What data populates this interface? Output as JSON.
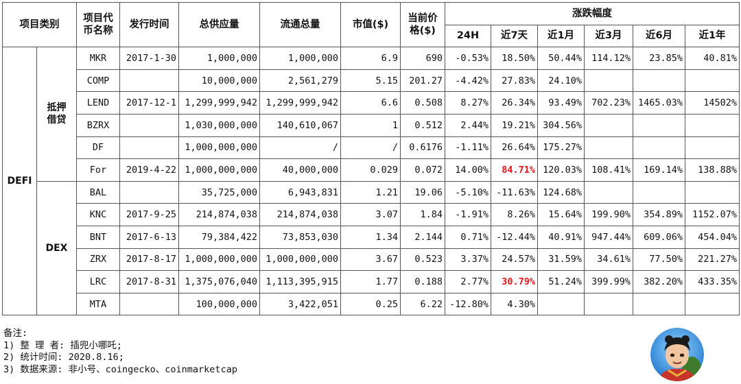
{
  "headers": {
    "category": "项目类别",
    "token_line1": "项目代",
    "token_line2": "币名称",
    "issue_date": "发行时间",
    "total_supply": "总供应量",
    "circulating": "流通总量",
    "market_cap_line1": "市值($)",
    "price_line1": "当前价",
    "price_line2": "格($)",
    "change": "涨跌幅度",
    "periods": [
      "24H",
      "近7天",
      "近1月",
      "近3月",
      "近6月",
      "近1年"
    ]
  },
  "categories": {
    "main": "DEFI",
    "sub_lending_line1": "抵押",
    "sub_lending_line2": "借贷",
    "sub_dex": "DEX"
  },
  "rows": [
    {
      "symbol": "MKR",
      "date": "2017-1-30",
      "supply": "1,000,000",
      "circ": "1,000,000",
      "mcap": "6.9",
      "price": "690",
      "c24h": "-0.53%",
      "c7d": "18.50%",
      "c1m": "50.44%",
      "c3m": "114.12%",
      "c6m": "23.85%",
      "c1y": "40.81%"
    },
    {
      "symbol": "COMP",
      "date": "",
      "supply": "10,000,000",
      "circ": "2,561,279",
      "mcap": "5.15",
      "price": "201.27",
      "c24h": "-4.42%",
      "c7d": "27.83%",
      "c1m": "24.10%",
      "c3m": "",
      "c6m": "",
      "c1y": ""
    },
    {
      "symbol": "LEND",
      "date": "2017-12-1",
      "supply": "1,299,999,942",
      "circ": "1,299,999,942",
      "mcap": "6.6",
      "price": "0.508",
      "c24h": "8.27%",
      "c7d": "26.34%",
      "c1m": "93.49%",
      "c3m": "702.23%",
      "c6m": "1465.03%",
      "c1y": "14502%"
    },
    {
      "symbol": "BZRX",
      "date": "",
      "supply": "1,030,000,000",
      "circ": "140,610,067",
      "mcap": "1",
      "price": "0.512",
      "c24h": "2.44%",
      "c7d": "19.21%",
      "c1m": "304.56%",
      "c3m": "",
      "c6m": "",
      "c1y": ""
    },
    {
      "symbol": "DF",
      "date": "",
      "supply": "1,000,000,000",
      "circ": "/",
      "mcap": "/",
      "price": "0.6176",
      "c24h": "-1.11%",
      "c7d": "26.64%",
      "c1m": "175.27%",
      "c3m": "",
      "c6m": "",
      "c1y": ""
    },
    {
      "symbol": "For",
      "date": "2019-4-22",
      "supply": "1,000,000,000",
      "circ": "40,000,000",
      "mcap": "0.029",
      "price": "0.072",
      "c24h": "14.00%",
      "c7d": "84.71%",
      "c1m": "120.03%",
      "c3m": "108.41%",
      "c6m": "169.14%",
      "c1y": "138.88%",
      "highlight": true
    },
    {
      "symbol": "BAL",
      "date": "",
      "supply": "35,725,000",
      "circ": "6,943,831",
      "mcap": "1.21",
      "price": "19.06",
      "c24h": "-5.10%",
      "c7d": "-11.63%",
      "c1m": "124.68%",
      "c3m": "",
      "c6m": "",
      "c1y": ""
    },
    {
      "symbol": "KNC",
      "date": "2017-9-25",
      "supply": "214,874,038",
      "circ": "214,874,038",
      "mcap": "3.07",
      "price": "1.84",
      "c24h": "-1.91%",
      "c7d": "8.26%",
      "c1m": "15.64%",
      "c3m": "199.90%",
      "c6m": "354.89%",
      "c1y": "1152.07%"
    },
    {
      "symbol": "BNT",
      "date": "2017-6-13",
      "supply": "79,384,422",
      "circ": "73,853,030",
      "mcap": "1.34",
      "price": "2.144",
      "c24h": "0.71%",
      "c7d": "-12.44%",
      "c1m": "40.91%",
      "c3m": "947.44%",
      "c6m": "609.06%",
      "c1y": "454.04%"
    },
    {
      "symbol": "ZRX",
      "date": "2017-8-17",
      "supply": "1,000,000,000",
      "circ": "1,000,000,000",
      "mcap": "3.67",
      "price": "0.523",
      "c24h": "3.37%",
      "c7d": "24.57%",
      "c1m": "31.59%",
      "c3m": "34.61%",
      "c6m": "77.50%",
      "c1y": "221.27%"
    },
    {
      "symbol": "LRC",
      "date": "2017-8-31",
      "supply": "1,375,076,040",
      "circ": "1,113,395,915",
      "mcap": "1.77",
      "price": "0.188",
      "c24h": "2.77%",
      "c7d": "30.79%",
      "c1m": "51.24%",
      "c3m": "399.99%",
      "c6m": "382.20%",
      "c1y": "433.35%",
      "highlight": true
    },
    {
      "symbol": "MTA",
      "date": "",
      "supply": "100,000,000",
      "circ": "3,422,051",
      "mcap": "0.25",
      "price": "6.22",
      "c24h": "-12.80%",
      "c7d": "4.30%",
      "c1m": "",
      "c3m": "",
      "c6m": "",
      "c1y": ""
    }
  ],
  "notes": {
    "title": "备注:",
    "line1": "1) 整 理 者: 插兜小哪吒;",
    "line2": "2) 统计时间: 2020.8.16;",
    "line3": "3) 数据来源: 非小号、coingecko、coinmarketcap"
  },
  "colors": {
    "highlight": "#e8141b",
    "grid": "#555555"
  },
  "avatar_icon": "nezha-avatar-icon"
}
